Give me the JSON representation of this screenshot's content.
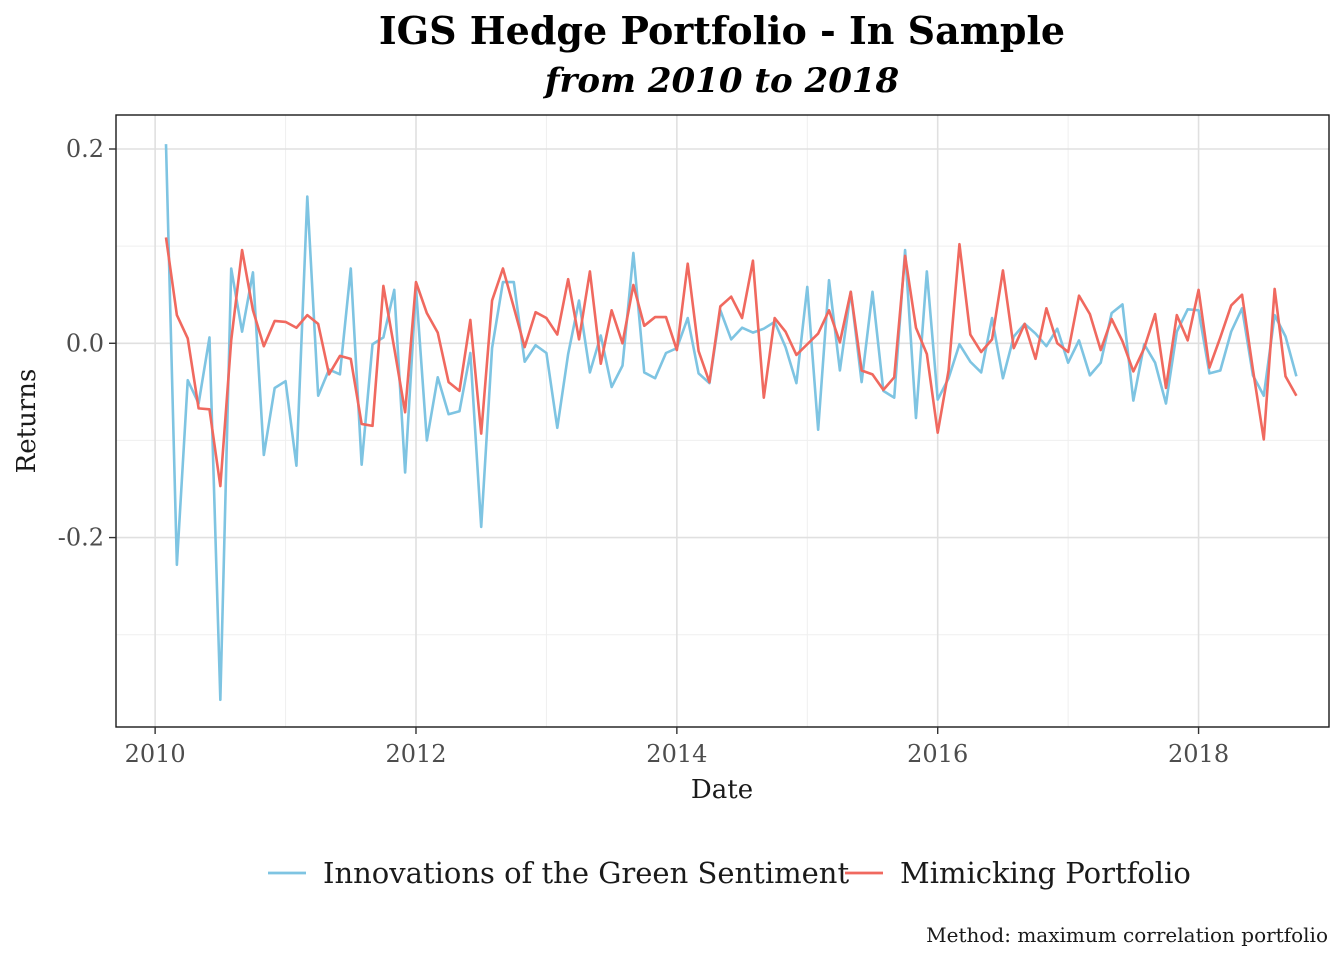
{
  "chart_data": {
    "type": "line",
    "title": "IGS Hedge Portfolio - In Sample",
    "subtitle": "from 2010 to 2018",
    "xlabel": "Date",
    "ylabel": "Returns",
    "caption": "Method: maximum correlation portfolio",
    "x_start": "2010-02",
    "x_end": "2018-10",
    "xlim": [
      2009.7,
      2019.0
    ],
    "ylim": [
      -0.395,
      0.235
    ],
    "x_ticks": [
      2010,
      2012,
      2014,
      2016,
      2018
    ],
    "x_tick_labels": [
      "2010",
      "2012",
      "2014",
      "2016",
      "2018"
    ],
    "y_ticks": [
      0.2,
      0.0,
      -0.2
    ],
    "y_tick_labels": [
      "0.2",
      "0.0",
      "-0.2"
    ],
    "grid": true,
    "legend_position": "bottom",
    "series": [
      {
        "name": "Innovations of the Green Sentiment",
        "color": "#7ec4e2",
        "values": [
          0.205,
          -0.228,
          -0.038,
          -0.062,
          0.006,
          -0.367,
          0.077,
          0.012,
          0.073,
          -0.115,
          -0.046,
          -0.039,
          -0.126,
          0.151,
          -0.054,
          -0.027,
          -0.032,
          0.077,
          -0.125,
          -0.001,
          0.006,
          0.055,
          -0.133,
          0.057,
          -0.1,
          -0.035,
          -0.073,
          -0.07,
          -0.01,
          -0.189,
          -0.005,
          0.063,
          0.063,
          -0.019,
          -0.002,
          -0.01,
          -0.087,
          -0.011,
          0.044,
          -0.03,
          0.008,
          -0.045,
          -0.023,
          0.093,
          -0.03,
          -0.036,
          -0.01,
          -0.005,
          0.026,
          -0.031,
          -0.041,
          0.034,
          0.004,
          0.016,
          0.011,
          0.015,
          0.022,
          -0.004,
          -0.041,
          0.058,
          -0.089,
          0.065,
          -0.028,
          0.053,
          -0.04,
          0.053,
          -0.049,
          -0.056,
          0.096,
          -0.077,
          0.074,
          -0.058,
          -0.036,
          -0.001,
          -0.019,
          -0.03,
          0.026,
          -0.036,
          0.007,
          0.02,
          0.01,
          -0.003,
          0.015,
          -0.02,
          0.003,
          -0.033,
          -0.02,
          0.031,
          0.04,
          -0.059,
          -0.001,
          -0.02,
          -0.062,
          0.012,
          0.035,
          0.034,
          -0.031,
          -0.028,
          0.012,
          0.036,
          -0.033,
          -0.054,
          0.029,
          0.007,
          -0.034
        ]
      },
      {
        "name": "Mimicking Portfolio",
        "color": "#f0695f",
        "values": [
          0.109,
          0.029,
          0.005,
          -0.067,
          -0.068,
          -0.147,
          0.003,
          0.096,
          0.034,
          -0.003,
          0.023,
          0.022,
          0.016,
          0.029,
          0.02,
          -0.032,
          -0.013,
          -0.016,
          -0.083,
          -0.085,
          0.059,
          -0.005,
          -0.071,
          0.063,
          0.031,
          0.011,
          -0.04,
          -0.049,
          0.024,
          -0.093,
          0.044,
          0.077,
          0.037,
          -0.004,
          0.032,
          0.026,
          0.009,
          0.066,
          0.004,
          0.074,
          -0.021,
          0.034,
          0.0,
          0.06,
          0.018,
          0.027,
          0.027,
          -0.007,
          0.082,
          -0.008,
          -0.04,
          0.038,
          0.048,
          0.026,
          0.085,
          -0.056,
          0.026,
          0.012,
          -0.012,
          -0.001,
          0.01,
          0.034,
          0.001,
          0.053,
          -0.028,
          -0.032,
          -0.048,
          -0.035,
          0.09,
          0.016,
          -0.011,
          -0.092,
          -0.028,
          0.102,
          0.009,
          -0.009,
          0.004,
          0.075,
          -0.005,
          0.02,
          -0.016,
          0.036,
          0.0,
          -0.009,
          0.049,
          0.03,
          -0.007,
          0.025,
          0.002,
          -0.029,
          -0.005,
          0.03,
          -0.046,
          0.029,
          0.003,
          0.055,
          -0.025,
          0.006,
          0.039,
          0.05,
          -0.027,
          -0.099,
          0.056,
          -0.034,
          -0.054
        ]
      }
    ]
  }
}
